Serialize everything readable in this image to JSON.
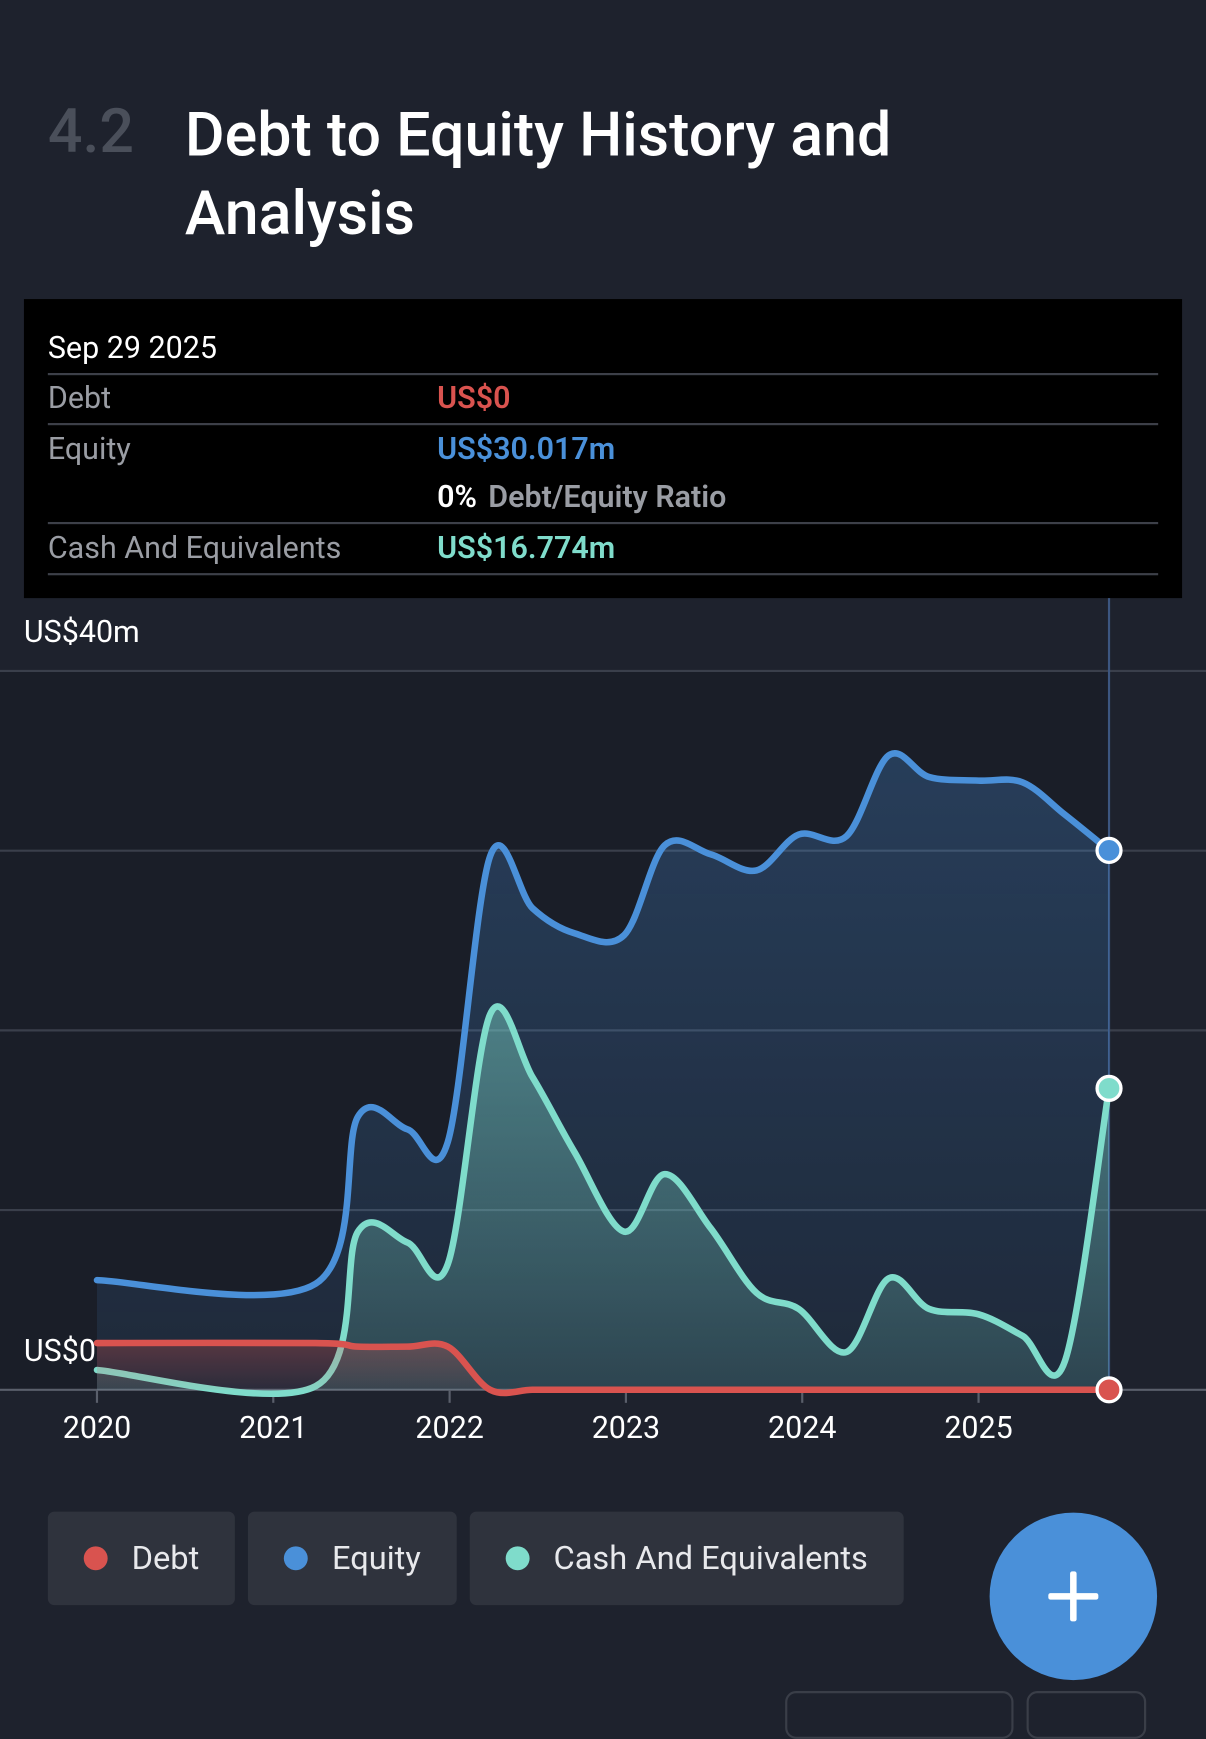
{
  "section": "4.2",
  "title": "Debt to Equity History and Analysis",
  "tooltip": {
    "date": "Sep 29 2025",
    "rows": [
      {
        "label": "Debt",
        "value": "US$0"
      },
      {
        "label": "Equity",
        "value": "US$30.017m"
      }
    ],
    "ratio": {
      "value": "0%",
      "label": "Debt/Equity Ratio"
    },
    "cash": {
      "label": "Cash And Equivalents",
      "value": "US$16.774m"
    }
  },
  "chart_data": {
    "type": "area",
    "x": [
      2020.0,
      2021.24,
      2021.48,
      2021.76,
      2021.99,
      2022.23,
      2022.47,
      2022.71,
      2022.99,
      2023.22,
      2023.48,
      2023.74,
      2023.98,
      2024.25,
      2024.49,
      2024.72,
      2025.0,
      2025.25,
      2025.49,
      2025.74
    ],
    "series": [
      {
        "name": "Debt",
        "color": "#d9534f",
        "values": [
          2.6,
          2.6,
          2.4,
          2.4,
          2.4,
          0,
          0,
          0,
          0,
          0,
          0,
          0,
          0,
          0,
          0,
          0,
          0,
          0,
          0,
          0
        ]
      },
      {
        "name": "Equity",
        "color": "#4a90d9",
        "values": [
          6.1,
          5.9,
          15.2,
          14.5,
          13.8,
          29.7,
          26.8,
          25.4,
          25.3,
          30.3,
          29.8,
          28.9,
          30.9,
          30.8,
          35.3,
          34.1,
          33.9,
          33.8,
          32.0,
          30.017
        ]
      },
      {
        "name": "Cash And Equivalents",
        "color": "#7fdccb",
        "values": [
          1.1,
          0.2,
          8.8,
          8.2,
          7.0,
          20.9,
          17.4,
          13.2,
          8.8,
          12.0,
          9.0,
          5.4,
          4.5,
          2.1,
          6.2,
          4.5,
          4.2,
          3.0,
          1.6,
          16.774
        ]
      }
    ],
    "xlim": [
      2019.45,
      2026.29
    ],
    "xticks": [
      2020,
      2021,
      2022,
      2023,
      2024,
      2025
    ],
    "ylim": [
      0,
      40
    ],
    "yticks": [
      {
        "value": 0,
        "label": "US$0"
      },
      {
        "value": 10,
        "label": null
      },
      {
        "value": 20,
        "label": null
      },
      {
        "value": 30,
        "label": null
      },
      {
        "value": 40,
        "label": "US$40m"
      }
    ],
    "grid": true
  }
}
